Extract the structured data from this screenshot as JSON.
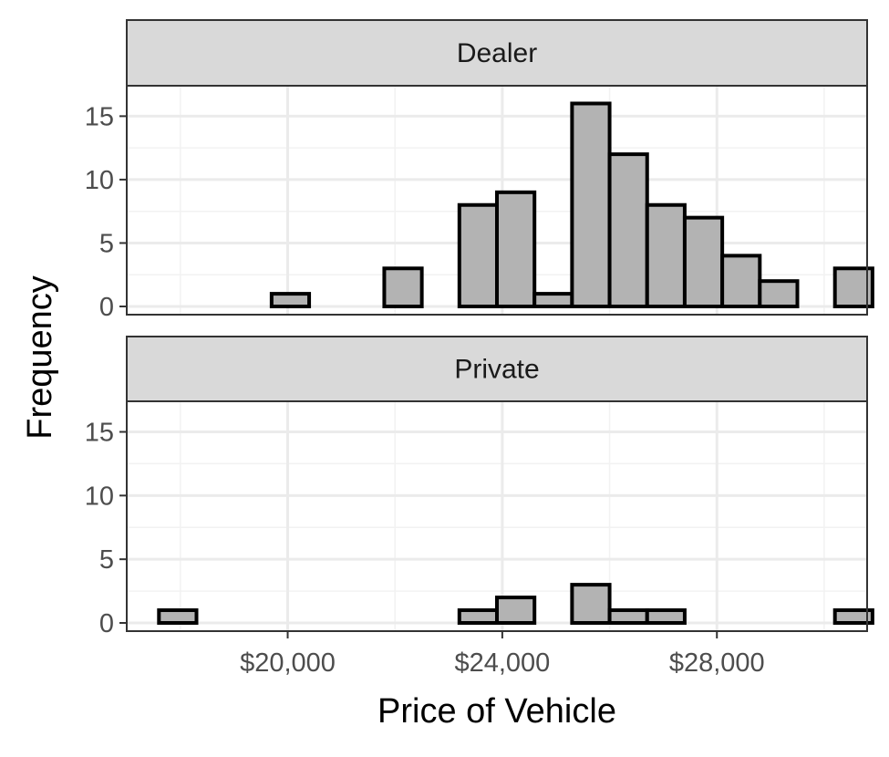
{
  "chart_data": {
    "type": "histogram",
    "xlabel": "Price of Vehicle",
    "ylabel": "Frequency",
    "xlim": [
      17000,
      30800
    ],
    "ylim": [
      0,
      17.4
    ],
    "x_ticks": [
      {
        "value": 20000,
        "label": "$20,000"
      },
      {
        "value": 24000,
        "label": "$24,000"
      },
      {
        "value": 28000,
        "label": "$28,000"
      }
    ],
    "y_ticks": [
      {
        "value": 0,
        "label": "0"
      },
      {
        "value": 5,
        "label": "5"
      },
      {
        "value": 10,
        "label": "10"
      },
      {
        "value": 15,
        "label": "15"
      }
    ],
    "bin_start": 17600,
    "bin_width": 700,
    "grid": true,
    "panels": [
      {
        "name": "Dealer",
        "counts": [
          0,
          0,
          0,
          1,
          0,
          0,
          3,
          0,
          8,
          9,
          1,
          16,
          12,
          8,
          7,
          4,
          2,
          0,
          3
        ]
      },
      {
        "name": "Private",
        "counts": [
          1,
          0,
          0,
          0,
          0,
          0,
          0,
          0,
          1,
          2,
          0,
          3,
          1,
          1,
          0,
          0,
          0,
          0,
          1
        ]
      }
    ],
    "colors": {
      "bar_fill": "#b3b3b3",
      "bar_stroke": "#000000",
      "strip_fill": "#d9d9d9",
      "grid_major": "#ebebeb",
      "grid_minor": "#f2f2f2",
      "panel_border": "#333333"
    }
  }
}
